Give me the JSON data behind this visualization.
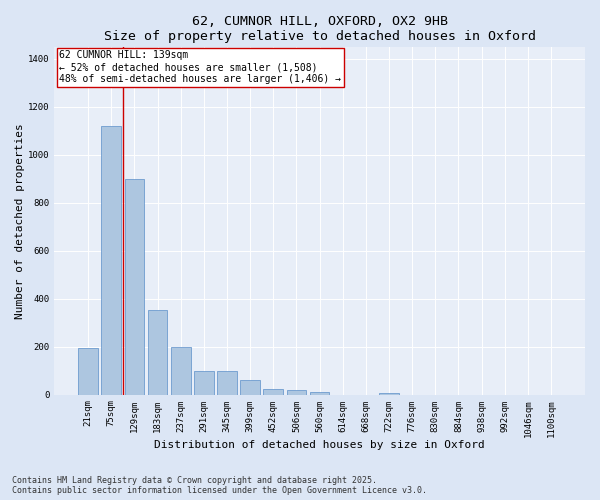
{
  "title1": "62, CUMNOR HILL, OXFORD, OX2 9HB",
  "title2": "Size of property relative to detached houses in Oxford",
  "xlabel": "Distribution of detached houses by size in Oxford",
  "ylabel": "Number of detached properties",
  "categories": [
    "21sqm",
    "75sqm",
    "129sqm",
    "183sqm",
    "237sqm",
    "291sqm",
    "345sqm",
    "399sqm",
    "452sqm",
    "506sqm",
    "560sqm",
    "614sqm",
    "668sqm",
    "722sqm",
    "776sqm",
    "830sqm",
    "884sqm",
    "938sqm",
    "992sqm",
    "1046sqm",
    "1100sqm"
  ],
  "values": [
    195,
    1120,
    900,
    355,
    197,
    100,
    100,
    60,
    25,
    18,
    12,
    0,
    0,
    8,
    0,
    0,
    0,
    0,
    0,
    0,
    0
  ],
  "bar_color": "#adc6e0",
  "bar_edge_color": "#5b8fc9",
  "vline_x": 1.5,
  "vline_color": "#cc0000",
  "annotation_text": "62 CUMNOR HILL: 139sqm\n← 52% of detached houses are smaller (1,508)\n48% of semi-detached houses are larger (1,406) →",
  "annotation_box_color": "#ffffff",
  "annotation_box_edge": "#cc0000",
  "ylim": [
    0,
    1450
  ],
  "yticks": [
    0,
    200,
    400,
    600,
    800,
    1000,
    1200,
    1400
  ],
  "bg_color": "#dce6f5",
  "plot_bg_color": "#e8eef8",
  "footer_line1": "Contains HM Land Registry data © Crown copyright and database right 2025.",
  "footer_line2": "Contains public sector information licensed under the Open Government Licence v3.0.",
  "title_fontsize": 9.5,
  "axis_label_fontsize": 8,
  "tick_fontsize": 6.5,
  "annotation_fontsize": 7,
  "footer_fontsize": 6
}
